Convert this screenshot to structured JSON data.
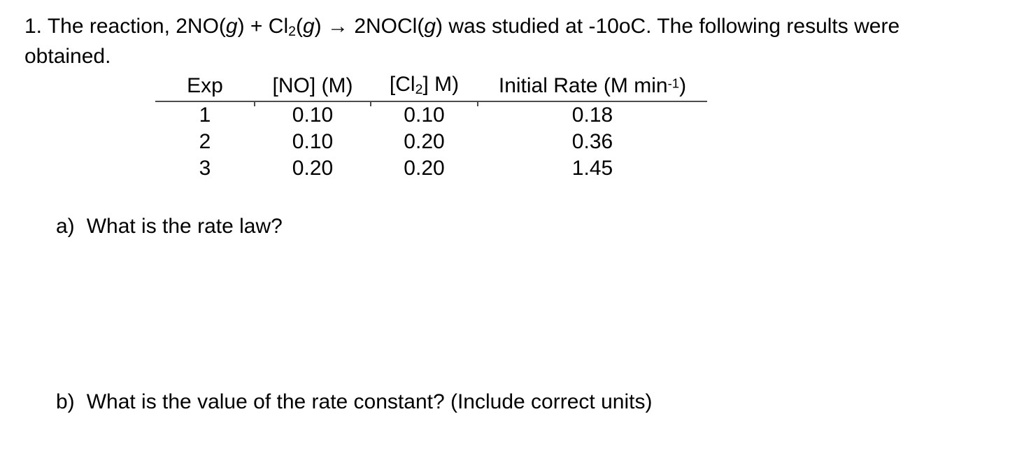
{
  "document": {
    "problem": {
      "line1_segments": {
        "s1": "1. The reaction, 2NO(",
        "g1": "g",
        "s2": ") + Cl",
        "sub1": "2",
        "s3": "(",
        "g2": "g",
        "s4": ") → 2NOCl(",
        "g3": "g",
        "s5": ") was studied at -10oC. The following results were"
      },
      "line2": "obtained."
    },
    "table": {
      "headers": {
        "exp": "Exp",
        "no": "[NO] (M)",
        "cl2_pre": "[Cl",
        "cl2_sub": "2",
        "cl2_post": "] M)",
        "rate_pre": "Initial Rate (M min",
        "rate_sup": "-1",
        "rate_post": ")"
      },
      "rows": [
        {
          "exp": "1",
          "no": "0.10",
          "cl2": "0.10",
          "rate": "0.18"
        },
        {
          "exp": "2",
          "no": "0.10",
          "cl2": "0.20",
          "rate": "0.36"
        },
        {
          "exp": "3",
          "no": "0.20",
          "cl2": "0.20",
          "rate": "1.45"
        }
      ]
    },
    "questions": {
      "a": {
        "label": "a)",
        "text": "What is the rate law?"
      },
      "b": {
        "label": "b)",
        "text": "What is the value of the rate constant? (Include correct units)"
      }
    },
    "colors": {
      "background": "#ffffff",
      "text": "#000000",
      "rule": "#4d4d4d"
    }
  }
}
